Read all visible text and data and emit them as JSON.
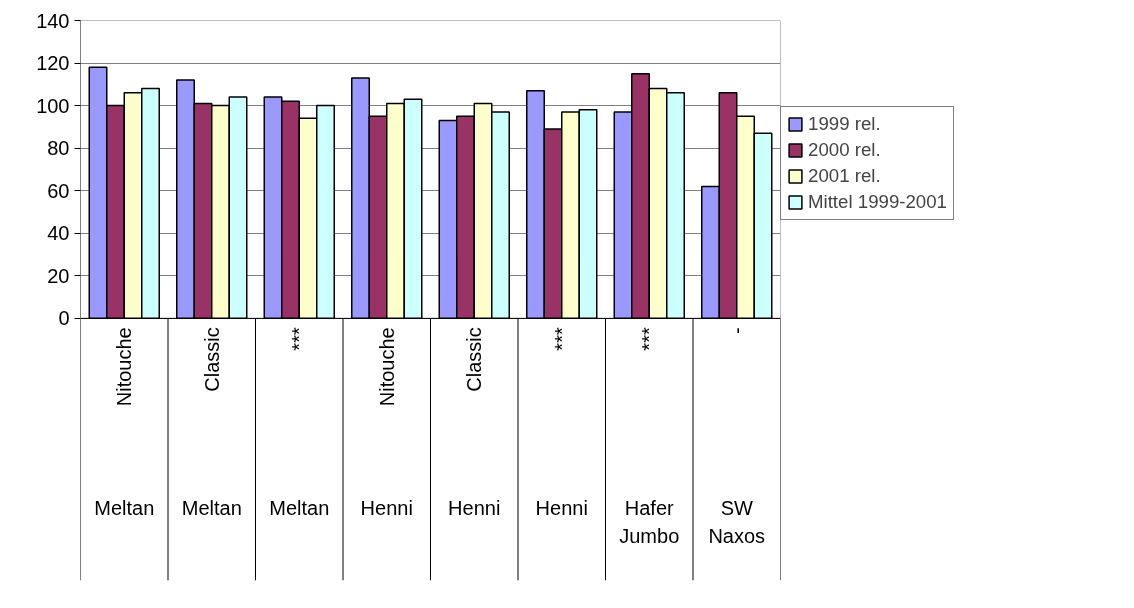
{
  "chart_data": {
    "type": "bar",
    "categories": [
      "Nitouche",
      "Classic",
      "***",
      "Nitouche",
      "Classic",
      "***",
      "***",
      "-"
    ],
    "annotations": [
      "Meltan",
      "Meltan",
      "Meltan",
      "Henni",
      "Henni",
      "Henni",
      "Hafer Jumbo",
      "SW Naxos"
    ],
    "series": [
      {
        "name": "1999 rel.",
        "color": "#9999ff",
        "values": [
          118,
          112,
          104,
          113,
          93,
          107,
          97,
          62
        ]
      },
      {
        "name": "2000 rel.",
        "color": "#993366",
        "values": [
          100,
          101,
          102,
          95,
          95,
          89,
          115,
          106
        ]
      },
      {
        "name": "2001 rel.",
        "color": "#ffffcc",
        "values": [
          106,
          100,
          94,
          101,
          101,
          97,
          108,
          95
        ]
      },
      {
        "name": "Mittel 1999-2001",
        "color": "#ccffff",
        "values": [
          108,
          104,
          100,
          103,
          97,
          98,
          106,
          87
        ]
      }
    ],
    "ylim": [
      0,
      140
    ],
    "yticks": [
      0,
      20,
      40,
      60,
      80,
      100,
      120,
      140
    ],
    "grid": "y",
    "legend": "right"
  }
}
